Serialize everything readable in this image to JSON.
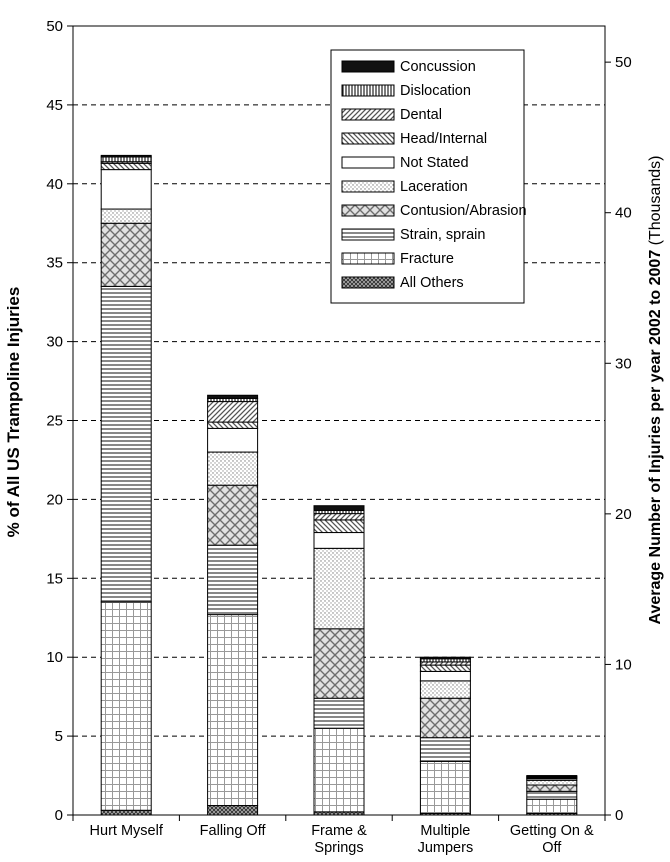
{
  "chart_data": {
    "type": "bar",
    "stacked": true,
    "categories": [
      "Hurt Myself",
      "Falling Off",
      "Frame & Springs",
      "Multiple Jumpers",
      "Getting On & Off"
    ],
    "category_lines": [
      [
        "Hurt Myself"
      ],
      [
        "Falling Off"
      ],
      [
        "Frame &",
        "Springs"
      ],
      [
        "Multiple",
        "Jumpers"
      ],
      [
        "Getting On &",
        "Off"
      ]
    ],
    "ylabel": "% of All US Trampoline Injuries",
    "ylim": [
      0,
      50
    ],
    "yticks": [
      0,
      5,
      10,
      15,
      20,
      25,
      30,
      35,
      40,
      45,
      50
    ],
    "y2label_bold": "Average Number of Injuries per year 2002 to 2007",
    "y2label_normal": " (Thousands)",
    "y2lim": [
      0,
      52.4
    ],
    "y2ticks": [
      0,
      10,
      20,
      30,
      40,
      50
    ],
    "grid": "dashed horizontal",
    "legend_position": "top-right",
    "series": [
      {
        "name": "All Others",
        "pattern": "dense-cross",
        "values": [
          0.3,
          0.6,
          0.2,
          0.1,
          0.1
        ]
      },
      {
        "name": "Fracture",
        "pattern": "grid",
        "values": [
          13.2,
          12.1,
          5.3,
          3.3,
          0.9
        ]
      },
      {
        "name": "Strain, sprain",
        "pattern": "horizontal",
        "values": [
          20.0,
          4.4,
          1.9,
          1.5,
          0.5
        ]
      },
      {
        "name": "Contusion/Abrasion",
        "pattern": "diamond",
        "values": [
          4.0,
          3.8,
          4.4,
          2.5,
          0.4
        ]
      },
      {
        "name": "Laceration",
        "pattern": "dots",
        "values": [
          0.9,
          2.1,
          5.1,
          1.1,
          0.3
        ]
      },
      {
        "name": "Not Stated",
        "pattern": "white",
        "values": [
          2.5,
          1.5,
          1.0,
          0.6,
          0.1
        ]
      },
      {
        "name": "Head/Internal",
        "pattern": "diag-back",
        "values": [
          0.4,
          0.4,
          0.8,
          0.4,
          0.05
        ]
      },
      {
        "name": "Dental",
        "pattern": "diag-fwd",
        "values": [
          0.1,
          1.3,
          0.4,
          0.2,
          0.05
        ]
      },
      {
        "name": "Dislocation",
        "pattern": "vertical",
        "values": [
          0.3,
          0.2,
          0.2,
          0.2,
          0.05
        ]
      },
      {
        "name": "Concussion",
        "pattern": "black",
        "values": [
          0.1,
          0.2,
          0.3,
          0.1,
          0.05
        ]
      }
    ],
    "legend_order": [
      "Concussion",
      "Dislocation",
      "Dental",
      "Head/Internal",
      "Not Stated",
      "Laceration",
      "Contusion/Abrasion",
      "Strain, sprain",
      "Fracture",
      "All Others"
    ]
  }
}
